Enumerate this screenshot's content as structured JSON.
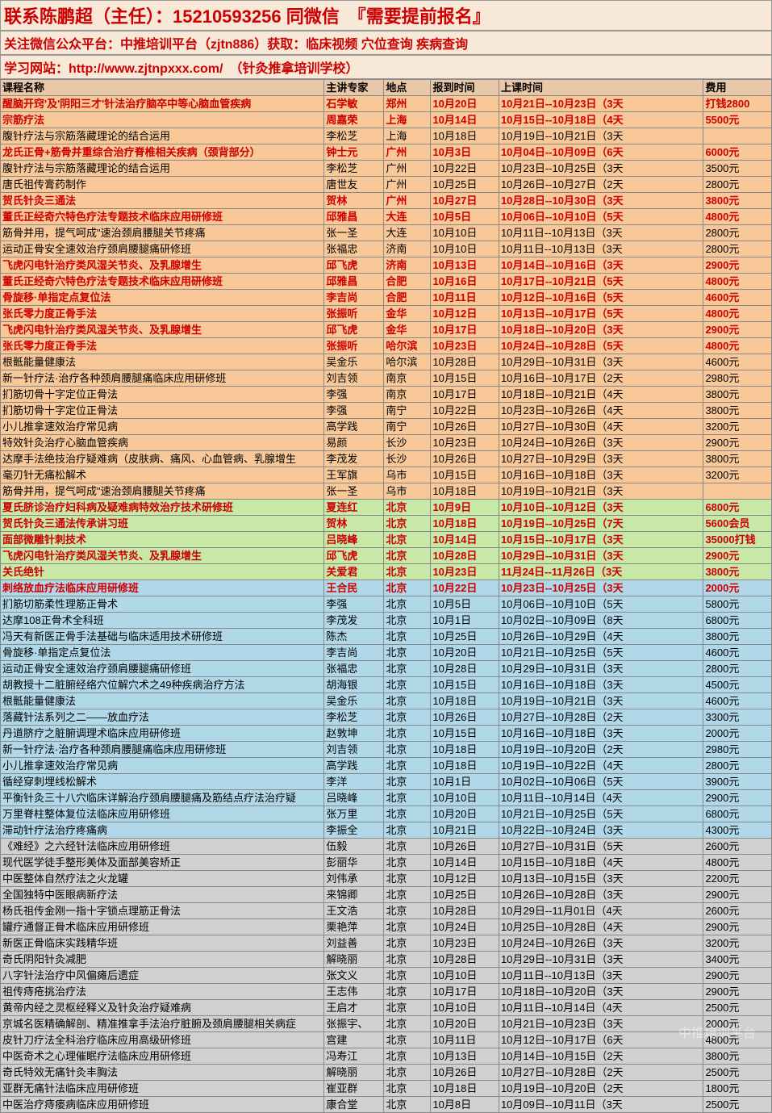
{
  "header": {
    "line1": "联系陈鹏超（主任）：15210593256 同微信　『需要提前报名』",
    "line2": "关注微信公众平台：中推培训平台（zjtn886）获取：临床视频 穴位查询 疾病查询",
    "line3_prefix": "学习网站：",
    "line3_url": "http://www.zjtnpxxx.com/",
    "line3_suffix": "（针灸推拿培训学校）"
  },
  "columns": [
    "课程名称",
    "主讲专家",
    "地点",
    "报到时间",
    "上课时间",
    "费用"
  ],
  "colors": {
    "orange": "#f8c898",
    "green": "#c8e8a8",
    "blue": "#b0d8e8",
    "gray": "#d0d0d0",
    "header_bg": "#e8c8a8",
    "red_text": "#c00"
  },
  "rows": [
    {
      "bg": "orange",
      "boldred": true,
      "c": [
        "醒脑开窍'及'阴阳三才'针法治疗脑卒中等心脑血管疾病",
        "石学敏",
        "郑州",
        "10月20日",
        "10月21日--10月23日（3天",
        "打钱2800"
      ]
    },
    {
      "bg": "orange",
      "boldred": true,
      "c": [
        "宗筋疗法",
        "周嘉荣",
        "上海",
        "10月14日",
        "10月15日--10月18日（4天",
        "5500元"
      ]
    },
    {
      "bg": "orange",
      "boldred": false,
      "c": [
        "腹针疗法与宗筋落藏理论的结合运用",
        "李松芝",
        "上海",
        "10月18日",
        "10月19日--10月21日（3天",
        ""
      ]
    },
    {
      "bg": "orange",
      "boldred": true,
      "c": [
        "龙氏正骨+筋骨并重综合治疗脊椎相关疾病（颈背部分）",
        "钟士元",
        "广州",
        "10月3日",
        "10月04日--10月09日（6天",
        "6000元"
      ]
    },
    {
      "bg": "orange",
      "boldred": false,
      "c": [
        "腹针疗法与宗筋落藏理论的结合运用",
        "李松芝",
        "广州",
        "10月22日",
        "10月23日--10月25日（3天",
        "3500元"
      ]
    },
    {
      "bg": "orange",
      "boldred": false,
      "c": [
        "唐氏祖传膏药制作",
        "唐世友",
        "广州",
        "10月25日",
        "10月26日--10月27日（2天",
        "2800元"
      ]
    },
    {
      "bg": "orange",
      "boldred": true,
      "c": [
        "贺氏针灸三通法",
        "贺林",
        "广州",
        "10月27日",
        "10月28日--10月30日（3天",
        "3800元"
      ]
    },
    {
      "bg": "orange",
      "boldred": true,
      "c": [
        "董氏正经奇穴特色疗法专题技术临床应用研修班",
        "邱雅昌",
        "大连",
        "10月5日",
        "10月06日--10月10日（5天",
        "4800元"
      ]
    },
    {
      "bg": "orange",
      "boldred": false,
      "c": [
        "筋骨并用，提气呵成\"速治颈肩腰腿关节疼痛",
        "张一圣",
        "大连",
        "10月10日",
        "10月11日--10月13日（3天",
        "2800元"
      ]
    },
    {
      "bg": "orange",
      "boldred": false,
      "c": [
        "运动正骨安全速效治疗颈肩腰腿痛研修班",
        "张福忠",
        "济南",
        "10月10日",
        "10月11日--10月13日（3天",
        "2800元"
      ]
    },
    {
      "bg": "orange",
      "boldred": true,
      "c": [
        "飞虎闪电针治疗类风湿关节炎、及乳腺增生",
        "邱飞虎",
        "济南",
        "10月13日",
        "10月14日--10月16日（3天",
        "2900元"
      ]
    },
    {
      "bg": "orange",
      "boldred": true,
      "c": [
        "董氏正经奇穴特色疗法专题技术临床应用研修班",
        "邱雅昌",
        "合肥",
        "10月16日",
        "10月17日--10月21日（5天",
        "4800元"
      ]
    },
    {
      "bg": "orange",
      "boldred": true,
      "c": [
        "骨旋移·单指定点复位法",
        "李吉尚",
        "合肥",
        "10月11日",
        "10月12日--10月16日（5天",
        "4600元"
      ]
    },
    {
      "bg": "orange",
      "boldred": true,
      "c": [
        "张氏零力度正骨手法",
        "张振听",
        "金华",
        "10月12日",
        "10月13日--10月17日（5天",
        "4800元"
      ]
    },
    {
      "bg": "orange",
      "boldred": true,
      "c": [
        "飞虎闪电针治疗类风湿关节炎、及乳腺增生",
        "邱飞虎",
        "金华",
        "10月17日",
        "10月18日--10月20日（3天",
        "2900元"
      ]
    },
    {
      "bg": "orange",
      "boldred": true,
      "c": [
        "张氏零力度正骨手法",
        "张振听",
        "哈尔滨",
        "10月23日",
        "10月24日--10月28日（5天",
        "4800元"
      ]
    },
    {
      "bg": "orange",
      "boldred": false,
      "c": [
        "根骶能量健康法",
        "吴金乐",
        "哈尔滨",
        "10月28日",
        "10月29日--10月31日（3天",
        "4600元"
      ]
    },
    {
      "bg": "orange",
      "boldred": false,
      "c": [
        "新一针疗法·治疗各种颈肩腰腿痛临床应用研修班",
        "刘吉领",
        "南京",
        "10月15日",
        "10月16日--10月17日（2天",
        "2980元"
      ]
    },
    {
      "bg": "orange",
      "boldred": false,
      "c": [
        "扪筋切骨十字定位正骨法",
        "李强",
        "南京",
        "10月17日",
        "10月18日--10月21日（4天",
        "3800元"
      ]
    },
    {
      "bg": "orange",
      "boldred": false,
      "c": [
        "扪筋切骨十字定位正骨法",
        "李强",
        "南宁",
        "10月22日",
        "10月23日--10月26日（4天",
        "3800元"
      ]
    },
    {
      "bg": "orange",
      "boldred": false,
      "c": [
        "小儿推拿速效治疗常见病",
        "高学践",
        "南宁",
        "10月26日",
        "10月27日--10月30日（4天",
        "3200元"
      ]
    },
    {
      "bg": "orange",
      "boldred": false,
      "c": [
        "特效针灸治疗心脑血管疾病",
        "易颜",
        "长沙",
        "10月23日",
        "10月24日--10月26日（3天",
        "2900元"
      ]
    },
    {
      "bg": "orange",
      "boldred": false,
      "c": [
        "达摩手法绝技治疗疑难病（皮肤病、痛风、心血管病、乳腺增生",
        "李茂发",
        "长沙",
        "10月26日",
        "10月27日--10月29日（3天",
        "3800元"
      ]
    },
    {
      "bg": "orange",
      "boldred": false,
      "c": [
        "毫刃针无痛松解术",
        "王军旗",
        "乌市",
        "10月15日",
        "10月16日--10月18日（3天",
        "3200元"
      ]
    },
    {
      "bg": "orange",
      "boldred": false,
      "c": [
        "筋骨并用，提气呵成\"速治颈肩腰腿关节疼痛",
        "张一圣",
        "乌市",
        "10月18日",
        "10月19日--10月21日（3天",
        ""
      ]
    },
    {
      "bg": "green",
      "boldred": true,
      "c": [
        "夏氏脐诊治疗妇科病及疑难病特效治疗技术研修班",
        "夏连红",
        "北京",
        "10月9日",
        "10月10日--10月12日（3天",
        "6800元"
      ]
    },
    {
      "bg": "green",
      "boldred": true,
      "c": [
        "贺氏针灸三通法传承讲习班",
        "贺林",
        "北京",
        "10月18日",
        "10月19日--10月25日（7天",
        "5600会员"
      ]
    },
    {
      "bg": "green",
      "boldred": true,
      "c": [
        "面部微雕针刺技术",
        "吕晓峰",
        "北京",
        "10月14日",
        "10月15日--10月17日（3天",
        "35000打钱"
      ]
    },
    {
      "bg": "green",
      "boldred": true,
      "c": [
        "飞虎闪电针治疗类风湿关节炎、及乳腺增生",
        "邱飞虎",
        "北京",
        "10月28日",
        "10月29日--10月31日（3天",
        "2900元"
      ]
    },
    {
      "bg": "green",
      "boldred": true,
      "c": [
        "关氏绝针",
        "关爱君",
        "北京",
        "10月23日",
        "11月24日--11月26日（3天",
        "3800元"
      ]
    },
    {
      "bg": "blue",
      "boldred": true,
      "c": [
        "刺络放血疗法临床应用研修班",
        "王合民",
        "北京",
        "10月22日",
        "10月23日--10月25日（3天",
        "2000元"
      ]
    },
    {
      "bg": "blue",
      "boldred": false,
      "c": [
        "扪筋切筋柔性理筋正骨术",
        "李强",
        "北京",
        "10月5日",
        "10月06日--10月10日（5天",
        "5800元"
      ]
    },
    {
      "bg": "blue",
      "boldred": false,
      "c": [
        "达摩108正骨术全科班",
        "李茂发",
        "北京",
        "10月1日",
        "10月02日--10月09日（8天",
        "6800元"
      ]
    },
    {
      "bg": "blue",
      "boldred": false,
      "c": [
        "冯天有新医正骨手法基础与临床适用技术研修班",
        "陈杰",
        "北京",
        "10月25日",
        "10月26日--10月29日（4天",
        "3800元"
      ]
    },
    {
      "bg": "blue",
      "boldred": false,
      "c": [
        "骨旋移·单指定点复位法",
        "李吉尚",
        "北京",
        "10月20日",
        "10月21日--10月25日（5天",
        "4600元"
      ]
    },
    {
      "bg": "blue",
      "boldred": false,
      "c": [
        "运动正骨安全速效治疗颈肩腰腿痛研修班",
        "张福忠",
        "北京",
        "10月28日",
        "10月29日--10月31日（3天",
        "2800元"
      ]
    },
    {
      "bg": "blue",
      "boldred": false,
      "c": [
        "胡教授十二脏腑经络穴位解穴术之49种疾病治疗方法",
        "胡海银",
        "北京",
        "10月15日",
        "10月16日--10月18日（3天",
        "4500元"
      ]
    },
    {
      "bg": "blue",
      "boldred": false,
      "c": [
        "根骶能量健康法",
        "吴金乐",
        "北京",
        "10月18日",
        "10月19日--10月21日（3天",
        "4600元"
      ]
    },
    {
      "bg": "blue",
      "boldred": false,
      "c": [
        "落藏针法系列之二——放血疗法",
        "李松芝",
        "北京",
        "10月26日",
        "10月27日--10月28日（2天",
        "3300元"
      ]
    },
    {
      "bg": "blue",
      "boldred": false,
      "c": [
        "丹道脐疗之脏腑调理术临床应用研修班",
        "赵敦坤",
        "北京",
        "10月15日",
        "10月16日--10月18日（3天",
        "2000元"
      ]
    },
    {
      "bg": "blue",
      "boldred": false,
      "c": [
        "新一针疗法·治疗各种颈肩腰腿痛临床应用研修班",
        "刘吉领",
        "北京",
        "10月18日",
        "10月19日--10月20日（2天",
        "2980元"
      ]
    },
    {
      "bg": "blue",
      "boldred": false,
      "c": [
        "小儿推拿速效治疗常见病",
        "高学践",
        "北京",
        "10月18日",
        "10月19日--10月22日（4天",
        "2800元"
      ]
    },
    {
      "bg": "blue",
      "boldred": false,
      "c": [
        "循经穿刺埋线松解术",
        "李洋",
        "北京",
        "10月1日",
        "10月02日--10月06日（5天",
        "3900元"
      ]
    },
    {
      "bg": "blue",
      "boldred": false,
      "c": [
        "平衡针灸三十八穴临床详解治疗颈肩腰腿痛及筋结点疗法治疗疑",
        "吕晓峰",
        "北京",
        "10月10日",
        "10月11日--10月14日（4天",
        "2900元"
      ]
    },
    {
      "bg": "blue",
      "boldred": false,
      "c": [
        "万里脊柱整体复位法临床应用研修班",
        "张万里",
        "北京",
        "10月20日",
        "10月21日--10月25日（5天",
        "6800元"
      ]
    },
    {
      "bg": "blue",
      "boldred": false,
      "c": [
        "滞动针疗法治疗疼痛病",
        "李振全",
        "北京",
        "10月21日",
        "10月22日--10月24日（3天",
        "4300元"
      ]
    },
    {
      "bg": "gray",
      "boldred": false,
      "c": [
        "《难经》之六经针法临床应用研修班",
        "伍毅",
        "北京",
        "10月26日",
        "10月27日--10月31日（5天",
        "2600元"
      ]
    },
    {
      "bg": "gray",
      "boldred": false,
      "c": [
        "现代医学徒手整形美体及面部美容矫正",
        "彭丽华",
        "北京",
        "10月14日",
        "10月15日--10月18日（4天",
        "4800元"
      ]
    },
    {
      "bg": "gray",
      "boldred": false,
      "c": [
        "中医整体自然疗法之火龙罐",
        "刘伟承",
        "北京",
        "10月12日",
        "10月13日--10月15日（3天",
        "2200元"
      ]
    },
    {
      "bg": "gray",
      "boldred": false,
      "c": [
        "全国独特中医眼病新疗法",
        "来锦卿",
        "北京",
        "10月25日",
        "10月26日--10月28日（3天",
        "2900元"
      ]
    },
    {
      "bg": "gray",
      "boldred": false,
      "c": [
        "杨氏祖传金刚一指十字锁点理筋正骨法",
        "王文浩",
        "北京",
        "10月28日",
        "10月29日--11月01日（4天",
        "2600元"
      ]
    },
    {
      "bg": "gray",
      "boldred": false,
      "c": [
        "罐疗通督正骨术临床应用研修班",
        "栗艳萍",
        "北京",
        "10月24日",
        "10月25日--10月28日（4天",
        "2900元"
      ]
    },
    {
      "bg": "gray",
      "boldred": false,
      "c": [
        "新医正骨临床实践精华班",
        "刘益善",
        "北京",
        "10月23日",
        "10月24日--10月26日（3天",
        "3200元"
      ]
    },
    {
      "bg": "gray",
      "boldred": false,
      "c": [
        "奇氏阴阳针灸减肥",
        "解晓丽",
        "北京",
        "10月28日",
        "10月29日--10月31日（3天",
        "3400元"
      ]
    },
    {
      "bg": "gray",
      "boldred": false,
      "c": [
        "八字针法治疗中风偏瘫后遗症",
        "张文义",
        "北京",
        "10月10日",
        "10月11日--10月13日（3天",
        "2900元"
      ]
    },
    {
      "bg": "gray",
      "boldred": false,
      "c": [
        "祖传痔疮挑治疗法",
        "王志伟",
        "北京",
        "10月17日",
        "10月18日--10月20日（3天",
        "2900元"
      ]
    },
    {
      "bg": "gray",
      "boldred": false,
      "c": [
        "黄帝内经之灵枢经释义及针灸治疗疑难病",
        "王启才",
        "北京",
        "10月10日",
        "10月11日--10月14日（4天",
        "2500元"
      ]
    },
    {
      "bg": "gray",
      "boldred": false,
      "c": [
        "京城名医精确解剖、精准推拿手法治疗脏腑及颈肩腰腿相关病症",
        "张振宇、",
        "北京",
        "10月20日",
        "10月21日--10月23日（3天",
        "2000元"
      ]
    },
    {
      "bg": "gray",
      "boldred": false,
      "c": [
        "皮针刀疗法全科治疗临床应用高级研修班",
        "宫建",
        "北京",
        "10月11日",
        "10月12日--10月17日（6天",
        "4800元"
      ]
    },
    {
      "bg": "gray",
      "boldred": false,
      "c": [
        "中医奇术之心理催眠疗法临床应用研修班",
        "冯寿江",
        "北京",
        "10月13日",
        "10月14日--10月15日（2天",
        "3800元"
      ]
    },
    {
      "bg": "gray",
      "boldred": false,
      "c": [
        "奇氏特效无痛针灸丰胸法",
        "解晓丽",
        "北京",
        "10月26日",
        "10月27日--10月28日（2天",
        "2500元"
      ]
    },
    {
      "bg": "gray",
      "boldred": false,
      "c": [
        "亚群无痛针法临床应用研修班",
        "崔亚群",
        "北京",
        "10月18日",
        "10月19日--10月20日（2天",
        "1800元"
      ]
    },
    {
      "bg": "gray",
      "boldred": false,
      "c": [
        "中医治疗痔瘘病临床应用研修班",
        "康合堂",
        "北京",
        "10月8日",
        "10月09日--10月11日（3天",
        "2500元"
      ]
    }
  ],
  "watermark": "中推培训平台"
}
